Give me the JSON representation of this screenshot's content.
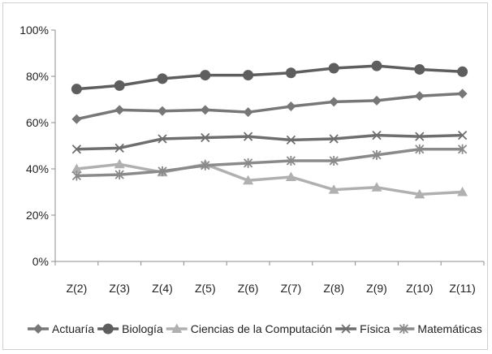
{
  "chart_data": {
    "type": "line",
    "categories": [
      "Z(2)",
      "Z(3)",
      "Z(4)",
      "Z(5)",
      "Z(6)",
      "Z(7)",
      "Z(8)",
      "Z(9)",
      "Z(10)",
      "Z(11)"
    ],
    "ylim": [
      0,
      100
    ],
    "yticks": [
      "0%",
      "20%",
      "40%",
      "60%",
      "80%",
      "100%"
    ],
    "grid": false,
    "legend_position": "bottom",
    "series": [
      {
        "name": "Actuaría",
        "marker": "diamond",
        "color": "#777777",
        "values": [
          61.5,
          65.5,
          65,
          65.5,
          64.5,
          67,
          69,
          69.5,
          71.5,
          72.5
        ]
      },
      {
        "name": "Biología",
        "marker": "circle",
        "color": "#5e5e5e",
        "values": [
          74.5,
          76,
          79,
          80.5,
          80.5,
          81.5,
          83.5,
          84.5,
          83,
          82
        ]
      },
      {
        "name": "Ciencias de la Computación",
        "marker": "triangle",
        "color": "#b0b0b0",
        "values": [
          40,
          42,
          38.5,
          42,
          35,
          36.5,
          31,
          32,
          29,
          30
        ]
      },
      {
        "name": "Física",
        "marker": "x",
        "color": "#6e6e6e",
        "values": [
          48.5,
          49,
          53,
          53.5,
          54,
          52.5,
          53,
          54.5,
          54,
          54.5
        ]
      },
      {
        "name": "Matemáticas",
        "marker": "asterisk",
        "color": "#8a8a8a",
        "values": [
          37,
          37.5,
          39,
          41.5,
          42.5,
          43.5,
          43.5,
          46,
          48.5,
          48.5
        ]
      }
    ]
  }
}
